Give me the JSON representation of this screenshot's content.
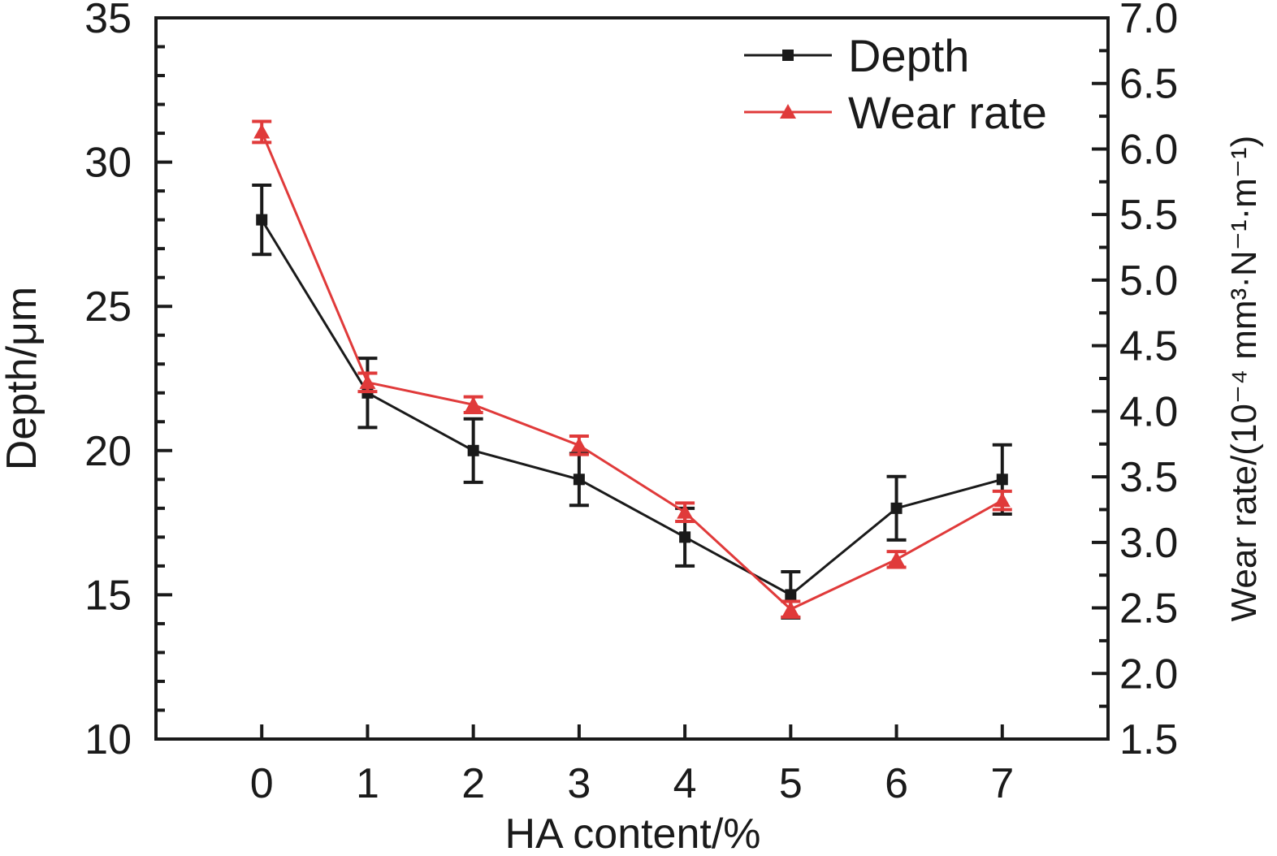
{
  "chart_data": {
    "type": "line",
    "x": [
      0,
      1,
      2,
      3,
      4,
      5,
      6,
      7
    ],
    "xlabel": "HA content/%",
    "xticks": [
      "0",
      "1",
      "2",
      "3",
      "4",
      "5",
      "6",
      "7"
    ],
    "xlim": [
      -1,
      8
    ],
    "ylabel_left": "Depth/μm",
    "ylim_left": [
      10,
      35
    ],
    "yticks_left": [
      "10",
      "15",
      "20",
      "25",
      "30",
      "35"
    ],
    "ylabel_right": "Wear rate/(10⁻⁴ mm³·N⁻¹·m⁻¹)",
    "ylim_right": [
      1.5,
      7.0
    ],
    "yticks_right": [
      "1.5",
      "2.0",
      "2.5",
      "3.0",
      "3.5",
      "4.0",
      "4.5",
      "5.0",
      "5.5",
      "6.0",
      "6.5",
      "7.0"
    ],
    "grid": false,
    "legend_position": "top-right",
    "series": [
      {
        "name": "Depth",
        "axis": "left",
        "marker": "square",
        "color": "#1a1a1a",
        "values": [
          28.0,
          22.0,
          20.0,
          19.0,
          17.0,
          15.0,
          18.0,
          19.0
        ],
        "errors": [
          1.2,
          1.2,
          1.1,
          0.9,
          1.0,
          0.8,
          1.1,
          1.2
        ]
      },
      {
        "name": "Wear rate",
        "axis": "right",
        "marker": "triangle",
        "color": "#e03a3a",
        "values": [
          6.13,
          4.22,
          4.05,
          3.74,
          3.23,
          2.49,
          2.87,
          3.32
        ],
        "errors": [
          0.08,
          0.07,
          0.06,
          0.07,
          0.07,
          0.06,
          0.06,
          0.07
        ]
      }
    ]
  }
}
